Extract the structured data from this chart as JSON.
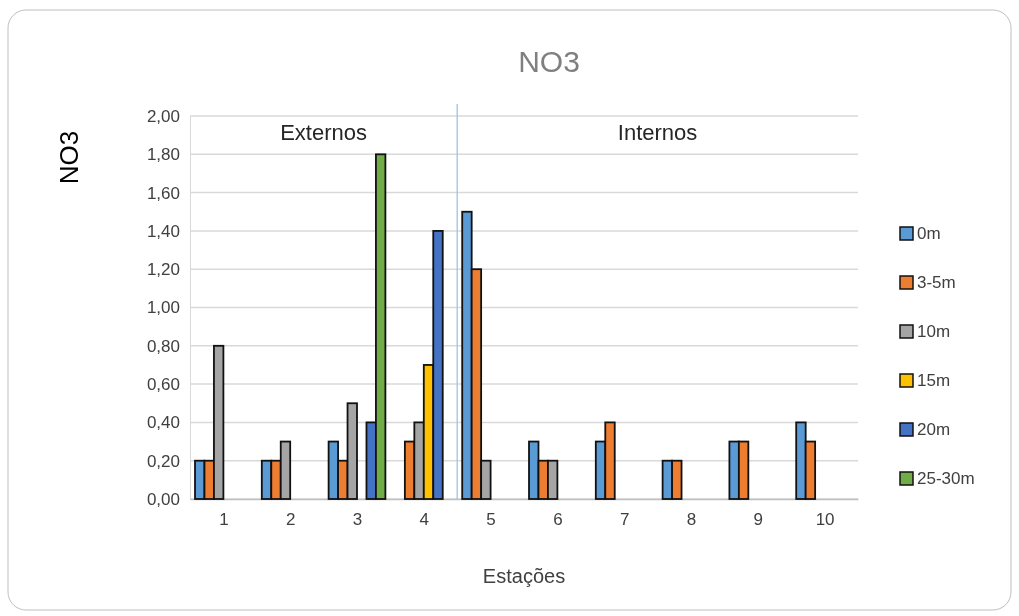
{
  "chart_data": {
    "type": "bar",
    "title": "NO3",
    "xlabel": "Estações",
    "ylabel": "NO3",
    "x": [
      1,
      2,
      3,
      4,
      5,
      6,
      7,
      8,
      9,
      10
    ],
    "xlim": [
      0.5,
      10.5
    ],
    "xticks": [
      1,
      2,
      3,
      4,
      5,
      6,
      7,
      8,
      9,
      10
    ],
    "ylim": [
      0,
      2
    ],
    "yticks": [
      {
        "value": 0,
        "label": "0,00"
      },
      {
        "value": 0.2,
        "label": "0,20"
      },
      {
        "value": 0.4,
        "label": "0,40"
      },
      {
        "value": 0.6,
        "label": "0,60"
      },
      {
        "value": 0.8,
        "label": "0,80"
      },
      {
        "value": 1,
        "label": "1,00"
      },
      {
        "value": 1.2,
        "label": "1,20"
      },
      {
        "value": 1.4,
        "label": "1,40"
      },
      {
        "value": 1.6,
        "label": "1,60"
      },
      {
        "value": 1.8,
        "label": "1,80"
      },
      {
        "value": 2,
        "label": "2,00"
      }
    ],
    "grid": "y",
    "legend": "right",
    "ref_lines": [
      {
        "axis": "x",
        "value": 4.5,
        "color": "#9dc3e6"
      }
    ],
    "annotations": [
      "Externos",
      "Internos"
    ],
    "series": [
      {
        "name": "0m",
        "color": "#5b9bd5",
        "values": [
          0.2,
          0.2,
          0.3,
          null,
          1.5,
          0.3,
          0.3,
          0.2,
          0.3,
          0.4
        ]
      },
      {
        "name": "3-5m",
        "color": "#ed7d31",
        "values": [
          0.2,
          0.2,
          0.2,
          0.3,
          1.2,
          0.2,
          0.4,
          0.2,
          0.3,
          0.3
        ]
      },
      {
        "name": "10m",
        "color": "#a5a5a5",
        "values": [
          0.8,
          0.3,
          0.5,
          0.4,
          0.2,
          0.2,
          null,
          null,
          null,
          null
        ]
      },
      {
        "name": "15m",
        "color": "#ffc000",
        "values": [
          null,
          null,
          null,
          0.7,
          null,
          null,
          null,
          null,
          null,
          null
        ]
      },
      {
        "name": "20m",
        "color": "#4472c4",
        "values": [
          null,
          null,
          0.4,
          1.4,
          null,
          null,
          null,
          null,
          null,
          null
        ]
      },
      {
        "name": "25-30m",
        "color": "#70ad47",
        "values": [
          null,
          null,
          1.8,
          null,
          null,
          null,
          null,
          null,
          null,
          null
        ]
      }
    ]
  }
}
